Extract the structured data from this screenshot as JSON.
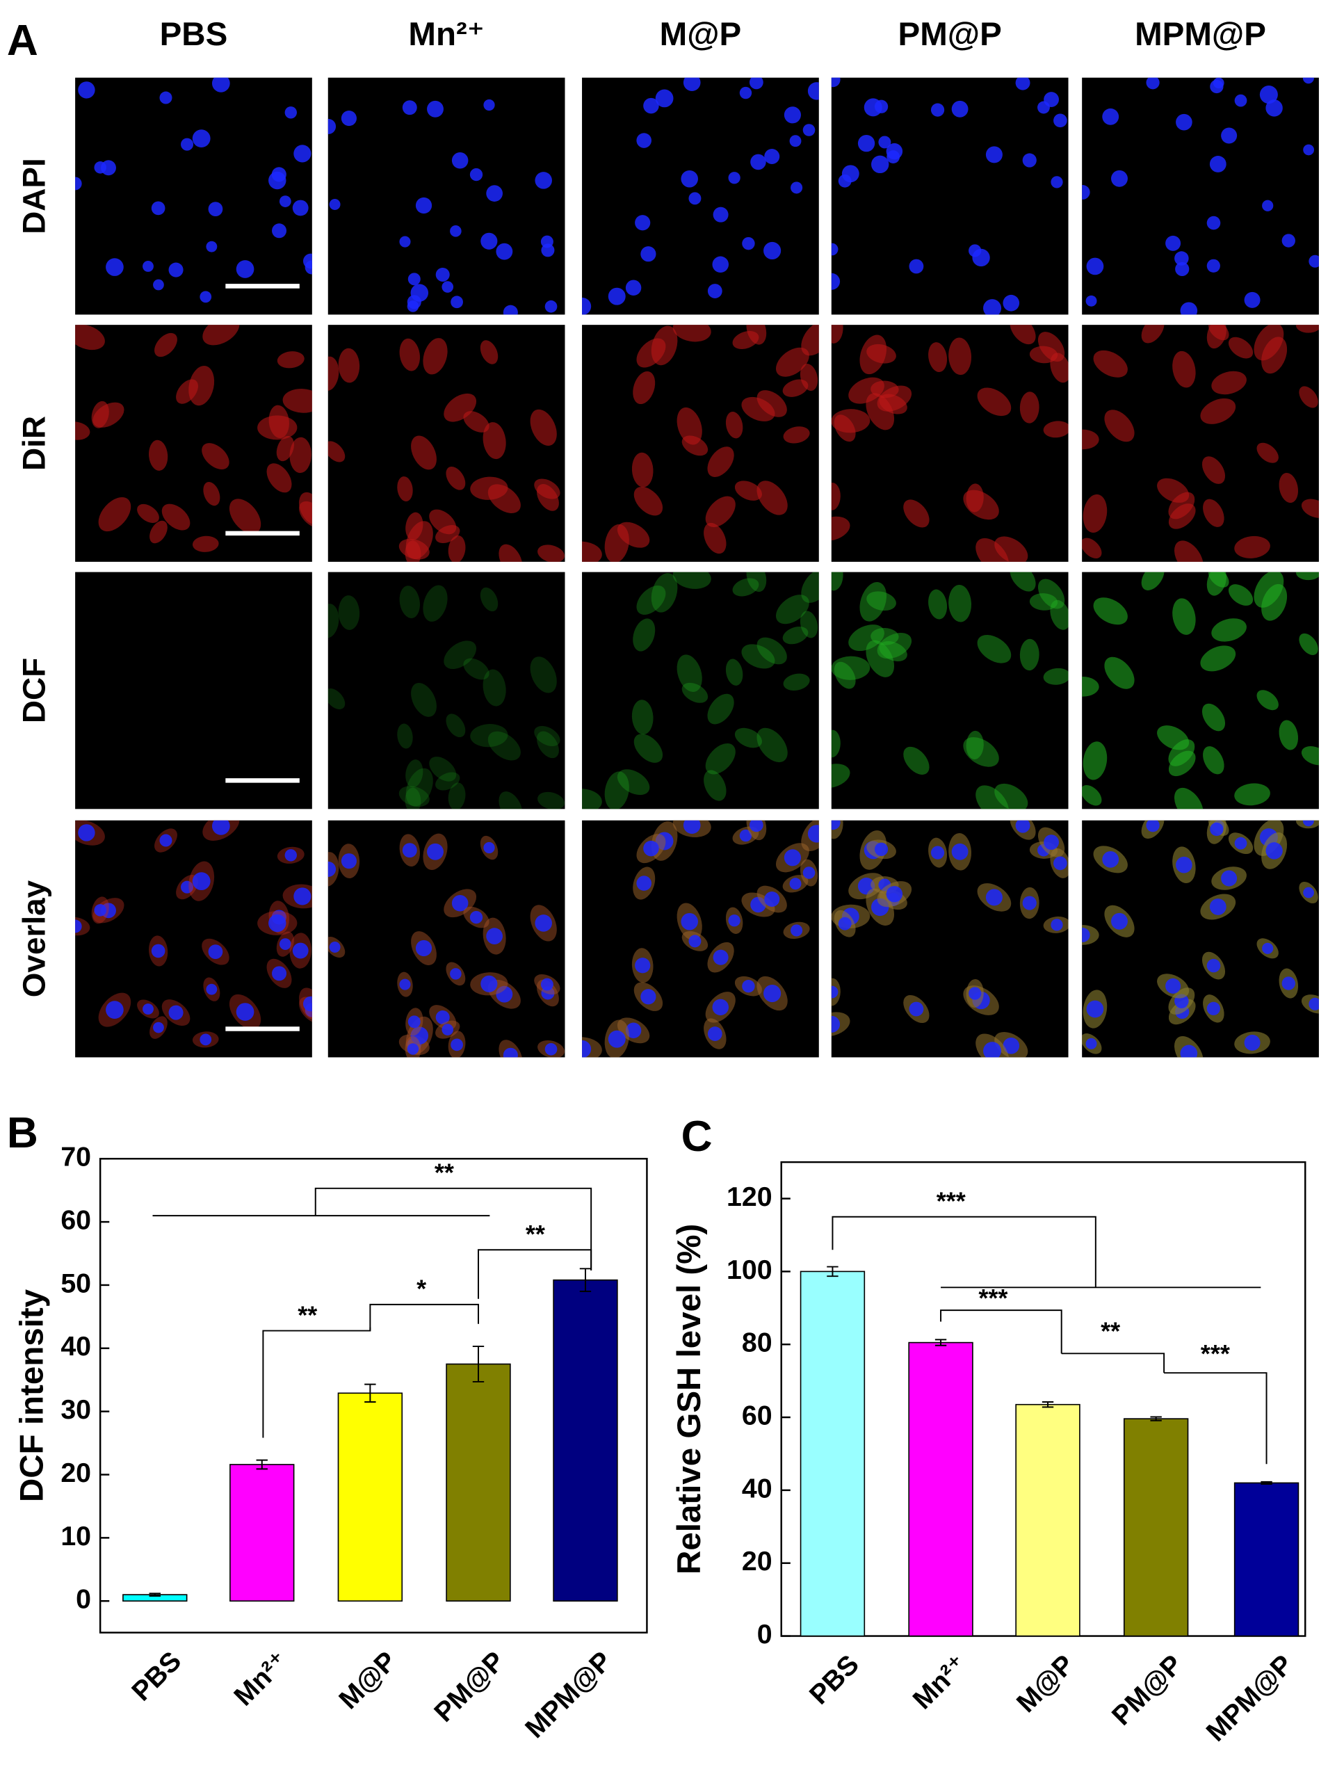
{
  "panel_a": {
    "label": "A",
    "columns": [
      "PBS",
      "Mn²⁺",
      "M@P",
      "PM@P",
      "MPM@P"
    ],
    "rows": [
      "DAPI",
      "DiR",
      "DCF",
      "Overlay"
    ]
  },
  "chart_data": [
    {
      "type": "bar",
      "label": "B",
      "y_label": "DCF intensity",
      "categories": [
        "PBS",
        "Mn²⁺",
        "M@P",
        "PM@P",
        "MPM@P"
      ],
      "values": [
        1.0,
        21.6,
        32.9,
        37.5,
        50.8
      ],
      "errors": [
        0.2,
        0.7,
        1.4,
        2.8,
        1.8
      ],
      "colors": [
        "#00ffff",
        "#ff00ff",
        "#ffff00",
        "#808000",
        "#000080"
      ],
      "ylim": [
        -5,
        70
      ],
      "yticks": [
        0,
        10,
        20,
        30,
        40,
        50,
        60,
        70
      ],
      "annotations": [
        "**",
        "**",
        "*",
        "**"
      ]
    },
    {
      "type": "bar",
      "label": "C",
      "y_label": "Relative GSH level (%)",
      "categories": [
        "PBS",
        "Mn²⁺",
        "M@P",
        "PM@P",
        "MPM@P"
      ],
      "values": [
        100,
        80.5,
        63.5,
        59.6,
        42.0
      ],
      "errors": [
        1.3,
        0.8,
        0.7,
        0.5,
        0.3
      ],
      "colors": [
        "#99ffff",
        "#ff00ff",
        "#ffff80",
        "#808000",
        "#000099"
      ],
      "ylim": [
        0,
        130
      ],
      "yticks": [
        0,
        20,
        40,
        60,
        80,
        100,
        120
      ],
      "annotations": [
        "***",
        "***",
        "**",
        "***"
      ]
    }
  ]
}
